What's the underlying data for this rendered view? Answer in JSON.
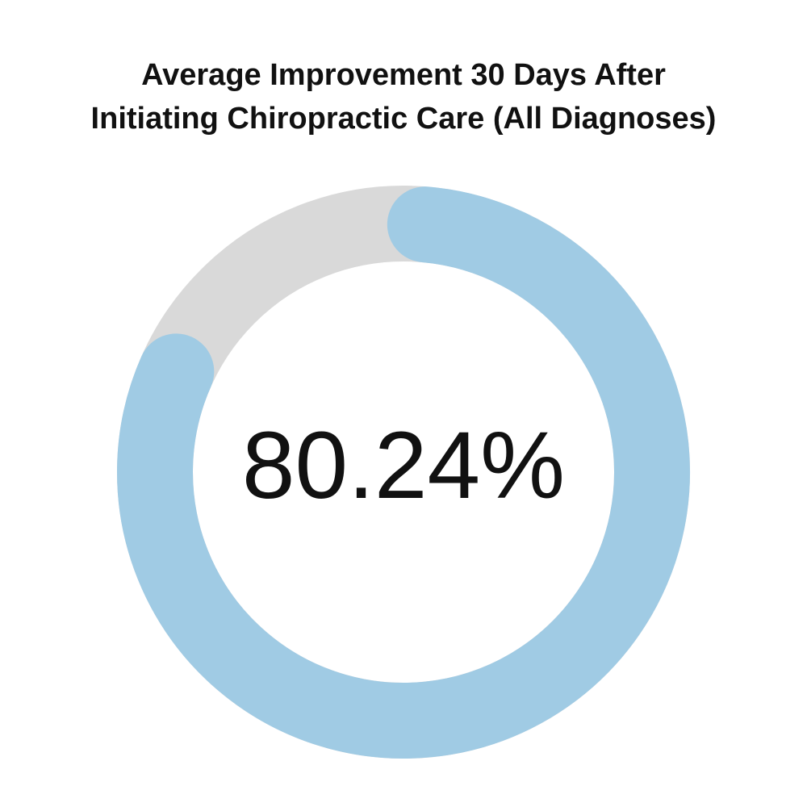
{
  "chart_data": {
    "type": "pie",
    "title": [
      "Average Improvement 30 Days After",
      "Initiating Chiropractic Care (All Diagnoses)"
    ],
    "center_label": "80.24%",
    "value_percent": 80.24,
    "colors": {
      "progress": "#a0cbe4",
      "track": "#d9d9d9",
      "text": "#111111",
      "background": "#ffffff"
    }
  }
}
